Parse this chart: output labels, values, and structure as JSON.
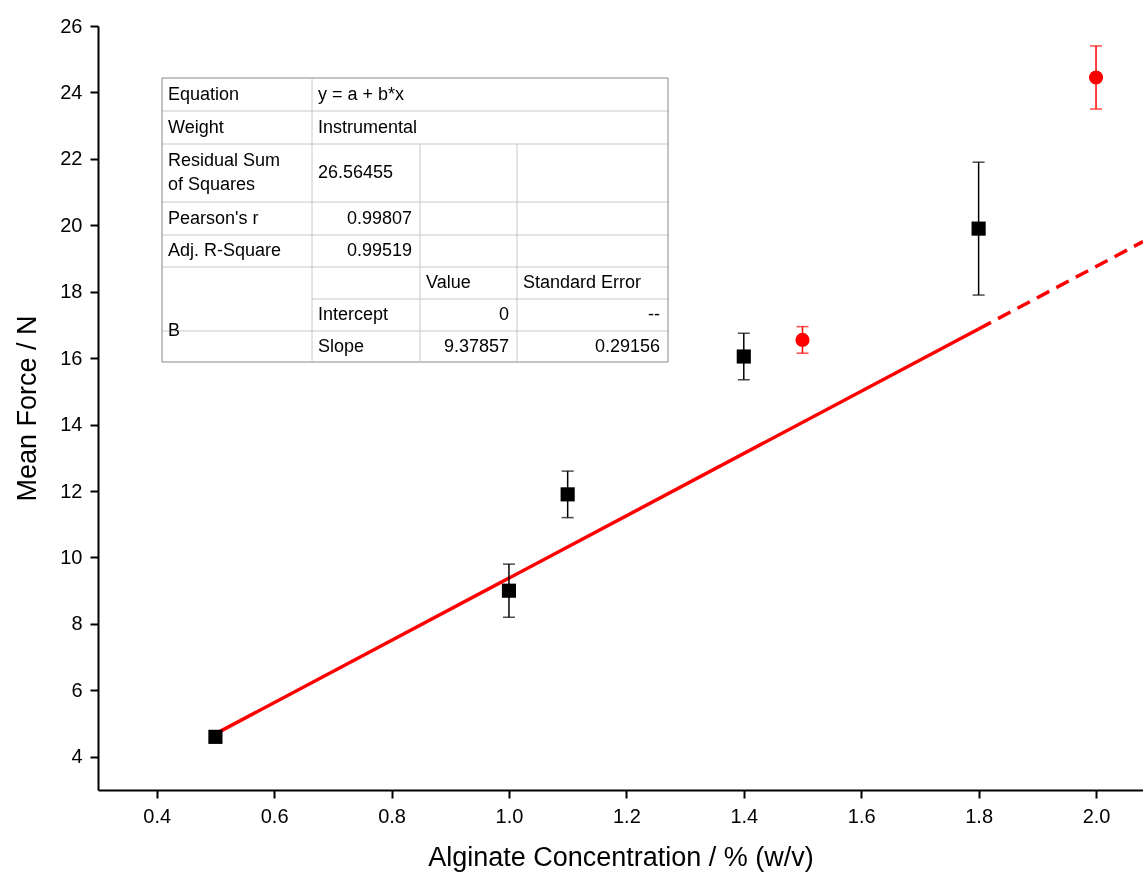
{
  "chart_data": {
    "type": "scatter",
    "xlabel": "Alginate Concentration / % (w/v)",
    "ylabel": "Mean Force / N",
    "xlim": [
      0.3,
      2.08
    ],
    "xticks": [
      {
        "value": 0.4,
        "label": "0.4"
      },
      {
        "value": 0.6,
        "label": "0.6"
      },
      {
        "value": 0.8,
        "label": "0.8"
      },
      {
        "value": 1.0,
        "label": "1.0"
      },
      {
        "value": 1.2,
        "label": "1.2"
      },
      {
        "value": 1.4,
        "label": "1.4"
      },
      {
        "value": 1.6,
        "label": "1.6"
      },
      {
        "value": 1.8,
        "label": "1.8"
      },
      {
        "value": 2.0,
        "label": "2.0"
      }
    ],
    "ylim": [
      3,
      26
    ],
    "yticks": [
      4,
      6,
      8,
      10,
      12,
      14,
      16,
      18,
      20,
      22,
      24,
      26
    ],
    "grid": false,
    "series": [
      {
        "type": "line",
        "color": "#ff0000",
        "line_style": "solid",
        "marker": "none",
        "x": [
          0.5,
          1.8
        ],
        "values": [
          4.69,
          16.88
        ]
      },
      {
        "type": "line",
        "color": "#ff0000",
        "line_style": "dashed",
        "marker": "none",
        "x": [
          1.8,
          2.08
        ],
        "values": [
          16.88,
          19.51
        ]
      },
      {
        "color": "#000000",
        "marker": "square",
        "x": [
          0.5,
          1.0,
          1.1,
          1.4,
          1.8
        ],
        "values": [
          4.6,
          9.0,
          11.9,
          16.05,
          19.9
        ],
        "errors": [
          null,
          0.8,
          0.7,
          0.7,
          2.0
        ]
      },
      {
        "color": "#ff0000",
        "marker": "circle",
        "x": [
          1.5,
          2.0
        ],
        "values": [
          16.55,
          24.45
        ],
        "errors": [
          0.4,
          0.95
        ]
      }
    ],
    "annotations": [
      "Equation",
      "y = a + b*x",
      "Weight",
      "Instrumental",
      "Residual Sum\nof Squares",
      "26.56455",
      "Pearson's r",
      "0.99807",
      "Adj. R-Square",
      "0.99519",
      "Value",
      "Standard Error",
      "B",
      "Intercept",
      "0",
      "--",
      "Slope",
      "9.37857",
      "0.29156"
    ]
  }
}
